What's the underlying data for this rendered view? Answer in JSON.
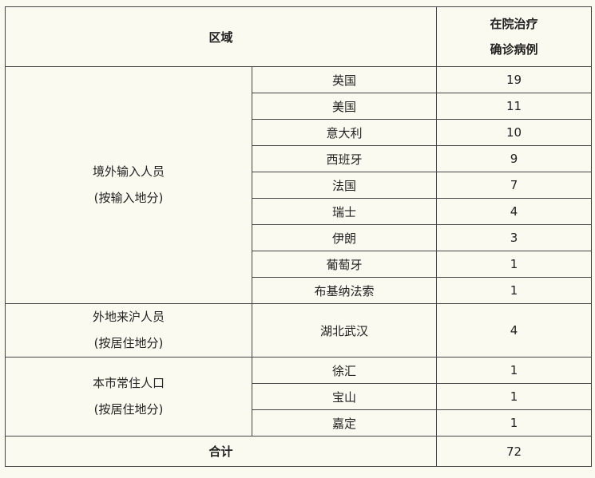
{
  "header": {
    "region": "区域",
    "count_line1": "在院治疗",
    "count_line2": "确诊病例"
  },
  "groups": [
    {
      "label_line1": "境外输入人员",
      "label_line2": "(按输入地分)",
      "rows": [
        {
          "place": "英国",
          "count": "19"
        },
        {
          "place": "美国",
          "count": "11"
        },
        {
          "place": "意大利",
          "count": "10"
        },
        {
          "place": "西班牙",
          "count": "9"
        },
        {
          "place": "法国",
          "count": "7"
        },
        {
          "place": "瑞士",
          "count": "4"
        },
        {
          "place": "伊朗",
          "count": "3"
        },
        {
          "place": "葡萄牙",
          "count": "1"
        },
        {
          "place": "布基纳法索",
          "count": "1"
        }
      ]
    },
    {
      "label_line1": "外地来沪人员",
      "label_line2": "(按居住地分)",
      "rows": [
        {
          "place": "湖北武汉",
          "count": "4"
        }
      ]
    },
    {
      "label_line1": "本市常住人口",
      "label_line2": "(按居住地分)",
      "rows": [
        {
          "place": "徐汇",
          "count": "1"
        },
        {
          "place": "宝山",
          "count": "1"
        },
        {
          "place": "嘉定",
          "count": "1"
        }
      ]
    }
  ],
  "total": {
    "label": "合计",
    "count": "72"
  }
}
